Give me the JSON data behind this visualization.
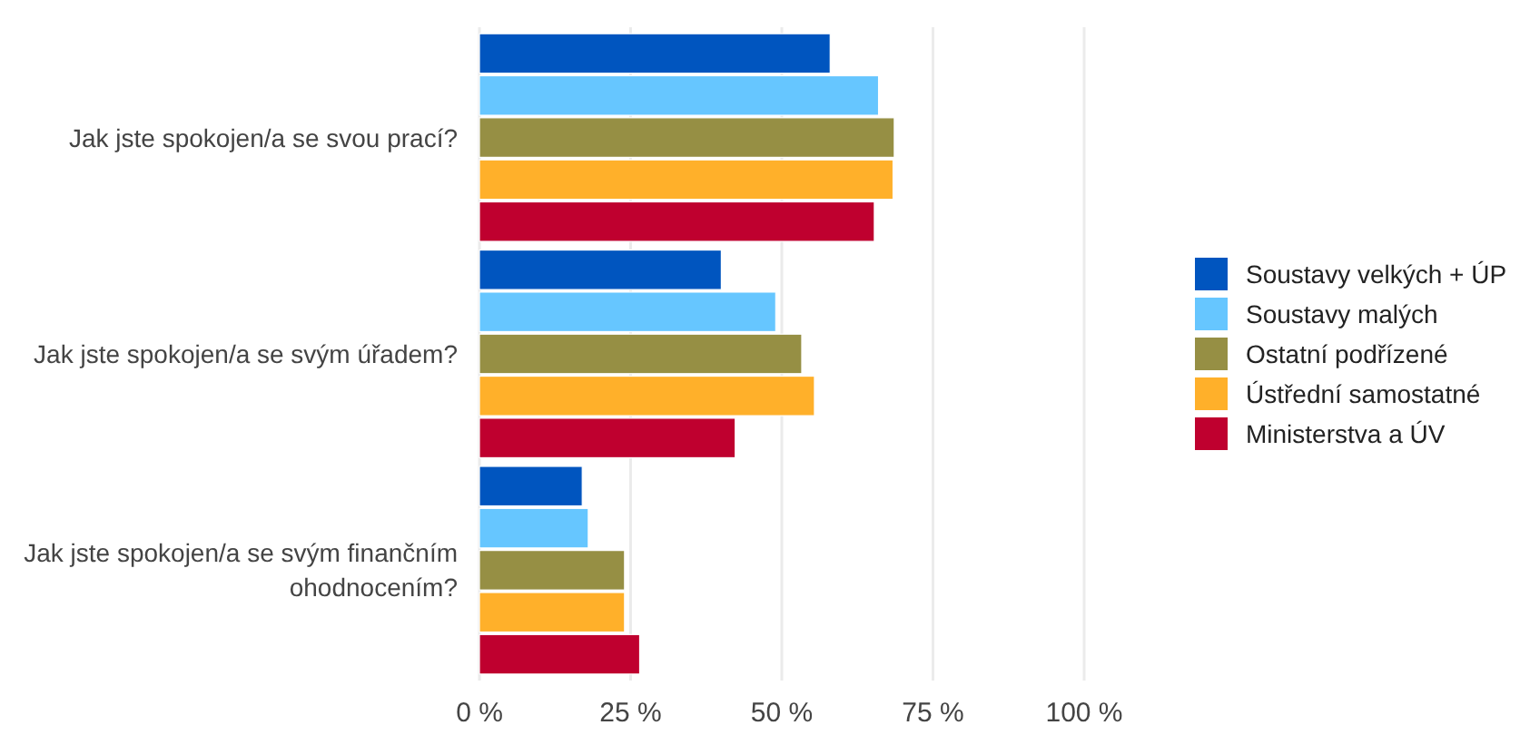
{
  "chart_data": {
    "type": "bar",
    "orientation": "horizontal",
    "categories": [
      "Jak jste spokojen/a se svou prací?",
      "Jak jste spokojen/a se svým úřadem?",
      "Jak jste spokojen/a se svým finančním ohodnocením?"
    ],
    "series": [
      {
        "name": "Soustavy velkých + ÚP",
        "color": "#0055bf",
        "values": [
          58,
          40,
          17
        ]
      },
      {
        "name": "Soustavy malých",
        "color": "#66c6ff",
        "values": [
          66,
          49,
          18
        ]
      },
      {
        "name": "Ostatní podřízené",
        "color": "#968f44",
        "values": [
          68.6,
          53.3,
          24
        ]
      },
      {
        "name": "Ústřední samostatné",
        "color": "#ffb02a",
        "values": [
          68.4,
          55.4,
          24
        ]
      },
      {
        "name": "Ministerstva a ÚV",
        "color": "#bf002f",
        "values": [
          65.3,
          42.3,
          26.5
        ]
      }
    ],
    "xlim": [
      0,
      100
    ],
    "xticks": [
      {
        "value": 0,
        "label": "0 %"
      },
      {
        "value": 25,
        "label": "25 %"
      },
      {
        "value": 50,
        "label": "50 %"
      },
      {
        "value": 75,
        "label": "75 %"
      },
      {
        "value": 100,
        "label": "100 %"
      }
    ],
    "grid": "x",
    "legend": "right"
  }
}
